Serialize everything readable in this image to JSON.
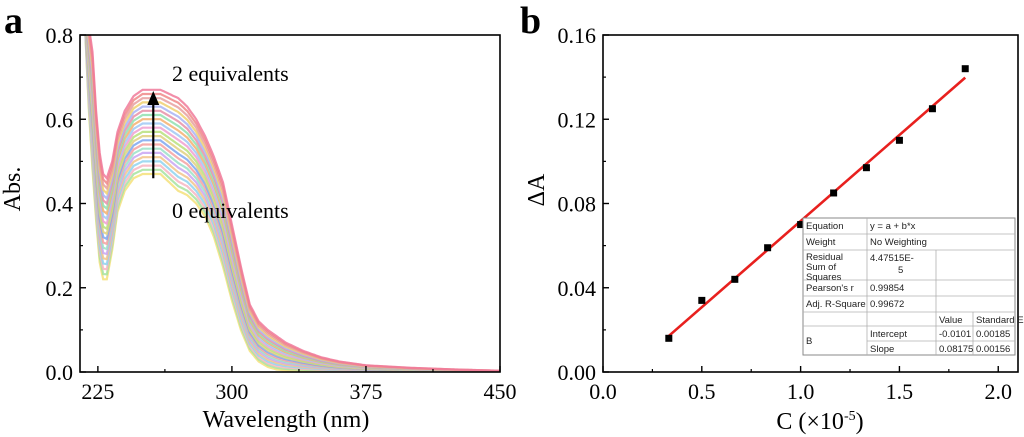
{
  "panels": [
    {
      "letter": "a",
      "chart_data": {
        "type": "line",
        "title": "",
        "xlabel": "Wavelength (nm)",
        "ylabel": "Abs.",
        "xlim": [
          215,
          450
        ],
        "ylim": [
          0,
          0.8
        ],
        "xticks": [
          225,
          300,
          375,
          450
        ],
        "xtick_labels": [
          "225",
          "300",
          "375",
          "450"
        ],
        "yticks": [
          0,
          0.2,
          0.4,
          0.6,
          0.8
        ],
        "ytick_labels": [
          "0.0",
          "0.2",
          "0.4",
          "0.6",
          "0.8"
        ],
        "annotation_top": "2 equivalents",
        "annotation_bottom": "0 equivalents",
        "arrow": {
          "x": 256,
          "y_from": 0.46,
          "y_to": 0.66
        },
        "series_count": 21,
        "series_range": {
          "first_name": "0 equivalents",
          "last_name": "2 equivalents"
        },
        "profile_x": [
          215,
          218,
          220,
          222,
          224,
          226,
          228,
          230,
          233,
          236,
          240,
          245,
          250,
          255,
          260,
          265,
          270,
          275,
          280,
          285,
          290,
          295,
          300,
          305,
          310,
          315,
          320,
          325,
          330,
          340,
          350,
          360,
          375,
          400,
          425,
          450
        ],
        "profile_min": [
          0.85,
          0.8,
          0.62,
          0.48,
          0.36,
          0.26,
          0.22,
          0.22,
          0.29,
          0.38,
          0.43,
          0.46,
          0.47,
          0.47,
          0.47,
          0.45,
          0.43,
          0.42,
          0.4,
          0.37,
          0.32,
          0.25,
          0.17,
          0.1,
          0.05,
          0.025,
          0.012,
          0.006,
          0.004,
          0.003,
          0.002,
          0.001,
          0.001,
          0.0,
          0.0,
          0.0
        ],
        "profile_max": [
          0.85,
          0.85,
          0.82,
          0.76,
          0.62,
          0.52,
          0.47,
          0.46,
          0.5,
          0.57,
          0.62,
          0.655,
          0.67,
          0.67,
          0.67,
          0.66,
          0.65,
          0.63,
          0.6,
          0.56,
          0.51,
          0.45,
          0.35,
          0.25,
          0.16,
          0.12,
          0.1,
          0.085,
          0.07,
          0.05,
          0.035,
          0.025,
          0.016,
          0.01,
          0.006,
          0.003
        ],
        "colors": [
          "#f4e07a",
          "#a6e3a0",
          "#f7b6c2",
          "#8fd3f0",
          "#f2c48a",
          "#c9a6f2",
          "#9be0c8",
          "#f6a1a1",
          "#7ea7f0",
          "#e0d080",
          "#b8e07c",
          "#f0a0d0",
          "#a0c8f4",
          "#f4b070",
          "#90e0b0",
          "#e890a8",
          "#a8b4f4",
          "#f0d070",
          "#e8a0a0",
          "#f08888",
          "#f07a9a"
        ]
      }
    },
    {
      "letter": "b",
      "chart_data": {
        "type": "scatter",
        "title": "",
        "xlabel": "C (×10",
        "xlabel_sup": "-5",
        "xlabel_close": ")",
        "ylabel": "ΔA",
        "xlim": [
          0.0,
          2.1
        ],
        "ylim": [
          0.0,
          0.16
        ],
        "xticks": [
          0.0,
          0.5,
          1.0,
          1.5,
          2.0
        ],
        "xtick_labels": [
          "0.0",
          "0.5",
          "1.0",
          "1.5",
          "2.0"
        ],
        "yticks": [
          0.0,
          0.04,
          0.08,
          0.12,
          0.16
        ],
        "ytick_labels": [
          "0.00",
          "0.04",
          "0.08",
          "0.12",
          "0.16"
        ],
        "x": [
          0.333,
          0.5,
          0.667,
          0.833,
          1.0,
          1.167,
          1.333,
          1.5,
          1.667,
          1.833
        ],
        "y": [
          0.016,
          0.034,
          0.044,
          0.059,
          0.07,
          0.085,
          0.097,
          0.11,
          0.125,
          0.144
        ],
        "fit": {
          "intercept": -0.0101,
          "slope": 0.08175,
          "x_range": [
            0.333,
            1.833
          ],
          "color": "#e8201e"
        },
        "marker_color": "#000000",
        "fit_table": {
          "rows": [
            [
              "Equation",
              "y = a + b*x",
              "",
              ""
            ],
            [
              "Weight",
              "No Weighting",
              "",
              ""
            ],
            [
              "Residual Sum of Squares",
              "4.47515E-5",
              "",
              ""
            ],
            [
              "Pearson's r",
              "0.99854",
              "",
              ""
            ],
            [
              "Adj. R-Square",
              "0.99672",
              "",
              ""
            ],
            [
              "",
              "",
              "Value",
              "Standard Err"
            ],
            [
              "B",
              "Intercept",
              "-0.0101",
              "0.00185"
            ],
            [
              "",
              "Slope",
              "0.08175",
              "0.00156"
            ]
          ],
          "residual_label_lines": [
            "Residual",
            "Sum of",
            "Squares"
          ],
          "residual_value_lines": [
            "4.47515E-",
            "5"
          ]
        }
      }
    }
  ]
}
